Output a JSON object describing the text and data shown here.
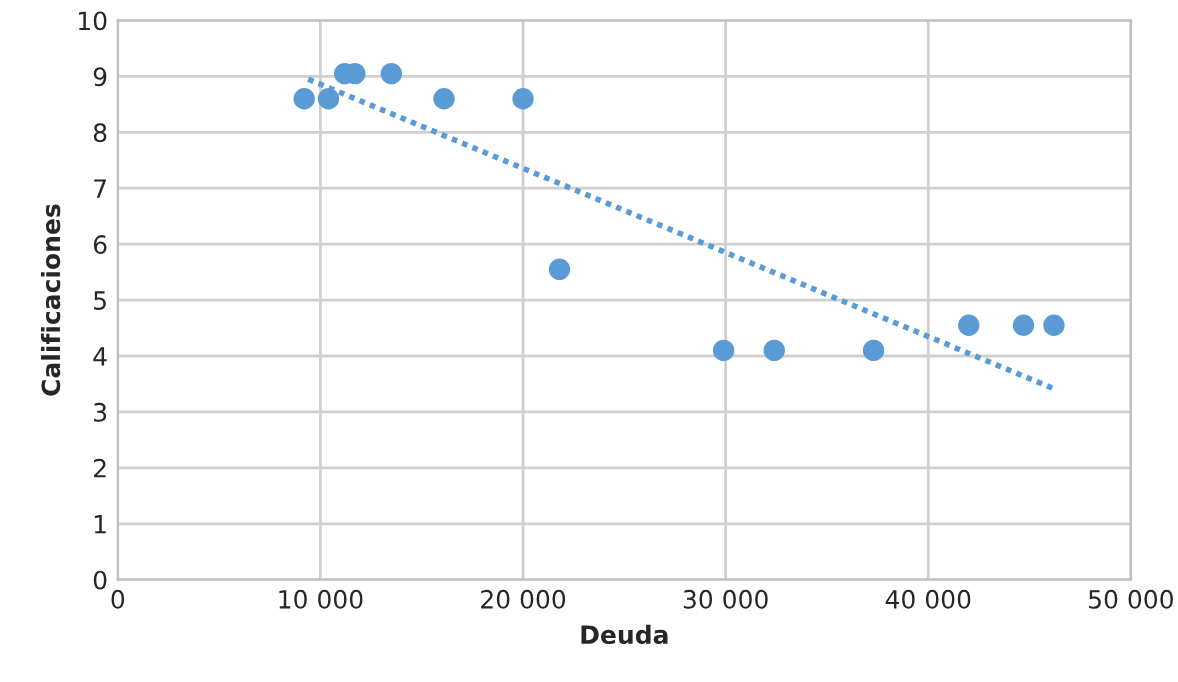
{
  "chart_data": {
    "type": "scatter",
    "xlabel": "Deuda",
    "ylabel": "Calificaciones",
    "x": [
      9200,
      10400,
      11200,
      11700,
      13500,
      16100,
      20000,
      21800,
      29900,
      32400,
      37300,
      42000,
      44700,
      46200
    ],
    "series": [
      {
        "color": "#5b9bd5",
        "values": [
          8.6,
          8.6,
          9.05,
          9.05,
          9.05,
          8.6,
          8.6,
          5.55,
          4.1,
          4.1,
          4.1,
          4.55,
          4.55,
          4.55
        ],
        "marker": "circle"
      },
      {
        "type": "line",
        "color": "#5b9bd5",
        "x": [
          9400,
          46300
        ],
        "values": [
          8.95,
          3.4
        ],
        "line_style": "dotted",
        "marker": "none"
      }
    ],
    "xlim": [
      0,
      50000
    ],
    "ylim": [
      0,
      10
    ],
    "xticks": [
      0,
      {
        "value": 10000,
        "label": "10 000"
      },
      {
        "value": 20000,
        "label": "20 000"
      },
      {
        "value": 30000,
        "label": "30 000"
      },
      {
        "value": 40000,
        "label": "40 000"
      },
      {
        "value": 50000,
        "label": "50 000"
      }
    ],
    "yticks": [
      0,
      1,
      2,
      3,
      4,
      5,
      6,
      7,
      8,
      9,
      10
    ],
    "grid": true
  }
}
